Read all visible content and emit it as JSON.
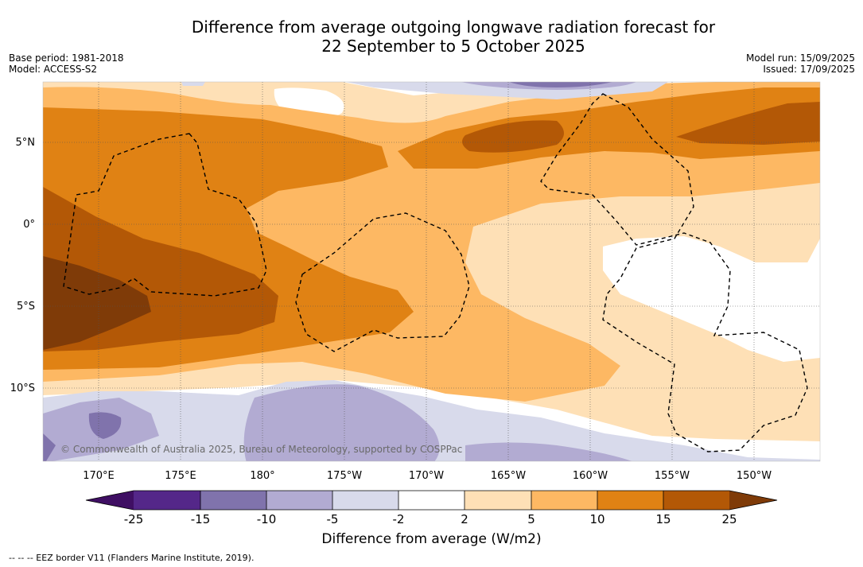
{
  "title_line1": "Difference from average outgoing longwave radiation forecast for",
  "title_line2": "22 September to 5 October 2025",
  "base_period": "Base period: 1981-2018",
  "model": "Model: ACCESS-S2",
  "model_run": "Model run: 15/09/2025",
  "issued": "Issued: 17/09/2025",
  "copyright": "© Commonwealth of Australia 2025, Bureau of Meteorology, supported by COSPPac",
  "lon_labels": [
    "170°E",
    "175°E",
    "180°",
    "175°W",
    "170°W",
    "165°W",
    "160°W",
    "155°W",
    "150°W"
  ],
  "lat_labels": [
    "5°N",
    "0°",
    "5°S",
    "10°S"
  ],
  "colorbar": {
    "ticks": [
      "-25",
      "-15",
      "-10",
      "-5",
      "-2",
      "2",
      "5",
      "10",
      "15",
      "25"
    ],
    "colors": [
      "#3f0f63",
      "#542789",
      "#8073ac",
      "#b2abd2",
      "#d8daeb",
      "#ffffff",
      "#fee0b6",
      "#fdb863",
      "#e08214",
      "#b35806",
      "#7f3b08"
    ],
    "label": "Difference from average (W/m2)"
  },
  "eez_note": "--  --  -- EEZ border V11 (Flanders Marine Institute, 2019)."
}
